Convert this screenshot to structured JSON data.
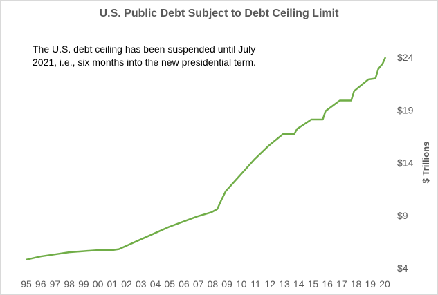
{
  "chart_data": {
    "type": "line",
    "title": "U.S. Public Debt Subject to Debt Ceiling Limit",
    "annotation_lines": [
      "The U.S. debt ceiling has been suspended until July",
      "2021, i.e., six months into the new presidential term."
    ],
    "ylabel": "$ Trillions",
    "ylim": [
      4,
      24
    ],
    "y_ticks": [
      4,
      9,
      14,
      19,
      24
    ],
    "y_tick_labels": [
      "$4",
      "$9",
      "$14",
      "$19",
      "$24"
    ],
    "xlim": [
      1995,
      2020.2
    ],
    "x_tick_labels": [
      "95",
      "96",
      "97",
      "98",
      "99",
      "00",
      "01",
      "02",
      "03",
      "04",
      "05",
      "06",
      "07",
      "08",
      "09",
      "10",
      "11",
      "12",
      "13",
      "14",
      "15",
      "16",
      "17",
      "18",
      "19",
      "20"
    ],
    "grid": false,
    "series": [
      {
        "color": "#70ad47",
        "points": [
          [
            1995.0,
            4.8
          ],
          [
            1996.0,
            5.1
          ],
          [
            1997.0,
            5.3
          ],
          [
            1998.0,
            5.5
          ],
          [
            1999.0,
            5.6
          ],
          [
            2000.0,
            5.7
          ],
          [
            2001.0,
            5.7
          ],
          [
            2001.5,
            5.8
          ],
          [
            2002.0,
            6.1
          ],
          [
            2003.0,
            6.7
          ],
          [
            2004.0,
            7.3
          ],
          [
            2005.0,
            7.9
          ],
          [
            2006.0,
            8.4
          ],
          [
            2007.0,
            8.9
          ],
          [
            2008.0,
            9.3
          ],
          [
            2008.4,
            9.6
          ],
          [
            2008.7,
            10.5
          ],
          [
            2009.0,
            11.3
          ],
          [
            2010.0,
            12.8
          ],
          [
            2011.0,
            14.3
          ],
          [
            2012.0,
            15.6
          ],
          [
            2013.0,
            16.7
          ],
          [
            2013.8,
            16.7
          ],
          [
            2014.0,
            17.2
          ],
          [
            2015.0,
            18.1
          ],
          [
            2015.8,
            18.1
          ],
          [
            2016.0,
            18.9
          ],
          [
            2017.0,
            19.9
          ],
          [
            2017.8,
            19.9
          ],
          [
            2018.0,
            20.8
          ],
          [
            2019.0,
            21.9
          ],
          [
            2019.5,
            22.0
          ],
          [
            2019.7,
            22.9
          ],
          [
            2020.0,
            23.4
          ],
          [
            2020.2,
            24.0
          ]
        ]
      }
    ]
  }
}
